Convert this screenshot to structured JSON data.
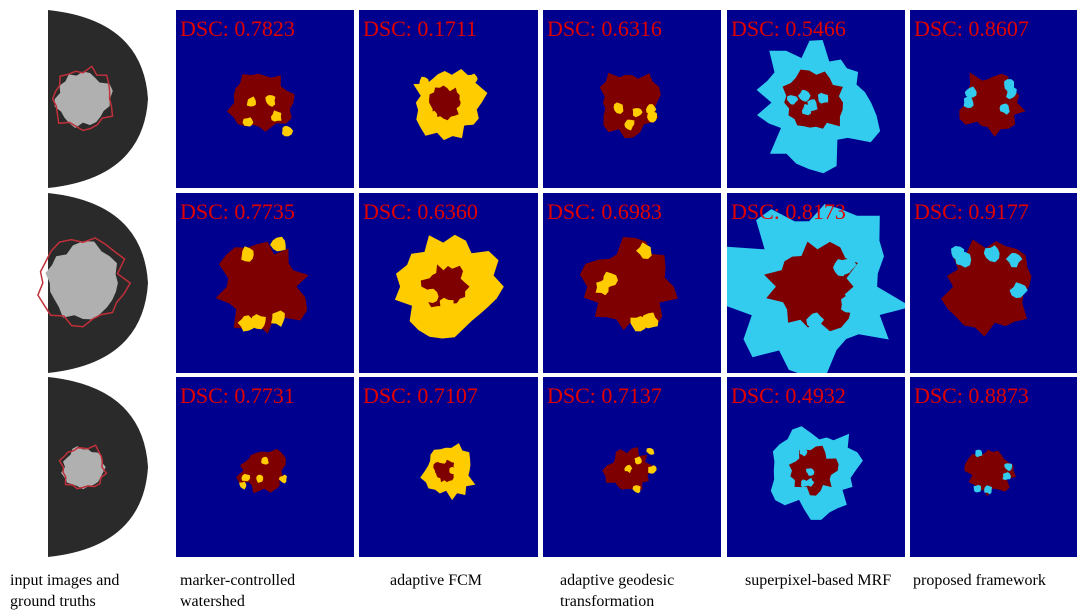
{
  "rows": [
    {
      "panels": [
        "DSC: 0.7823",
        "DSC: 0.1711",
        "DSC: 0.6316",
        "DSC: 0.5466",
        "DSC: 0.8607"
      ]
    },
    {
      "panels": [
        "DSC: 0.7735",
        "DSC: 0.6360",
        "DSC: 0.6983",
        "DSC: 0.8173",
        "DSC: 0.9177"
      ]
    },
    {
      "panels": [
        "DSC: 0.7731",
        "DSC: 0.7107",
        "DSC: 0.7137",
        "DSC: 0.4932",
        "DSC: 0.8873"
      ]
    }
  ],
  "captions": [
    "input images and ground truths",
    "marker-controlled watershed",
    "adaptive FCM",
    "adaptive geodesic transformation",
    "superpixel-based MRF",
    "proposed framework"
  ]
}
